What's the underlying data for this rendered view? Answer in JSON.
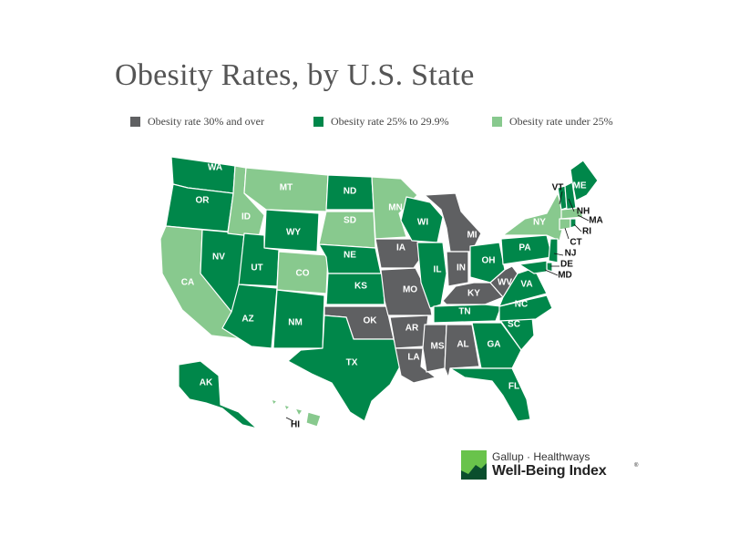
{
  "title": "Obesity Rates, by U.S. State",
  "colors": {
    "high": "#5f6062",
    "mid": "#00874a",
    "low": "#88c98e",
    "label_light": "#ffffff",
    "label_dark": "#111111"
  },
  "legend": [
    {
      "category": "high",
      "label": "Obesity rate 30% and over"
    },
    {
      "category": "mid",
      "label": "Obesity rate 25% to 29.9%"
    },
    {
      "category": "low",
      "label": "Obesity rate under 25%"
    }
  ],
  "states": [
    {
      "abbr": "WA",
      "category": "mid"
    },
    {
      "abbr": "OR",
      "category": "mid"
    },
    {
      "abbr": "CA",
      "category": "low"
    },
    {
      "abbr": "ID",
      "category": "low"
    },
    {
      "abbr": "NV",
      "category": "mid"
    },
    {
      "abbr": "MT",
      "category": "low"
    },
    {
      "abbr": "WY",
      "category": "mid"
    },
    {
      "abbr": "UT",
      "category": "mid"
    },
    {
      "abbr": "CO",
      "category": "low"
    },
    {
      "abbr": "AZ",
      "category": "mid"
    },
    {
      "abbr": "NM",
      "category": "mid"
    },
    {
      "abbr": "ND",
      "category": "mid"
    },
    {
      "abbr": "SD",
      "category": "low"
    },
    {
      "abbr": "NE",
      "category": "mid"
    },
    {
      "abbr": "KS",
      "category": "mid"
    },
    {
      "abbr": "OK",
      "category": "high"
    },
    {
      "abbr": "TX",
      "category": "mid"
    },
    {
      "abbr": "MN",
      "category": "low"
    },
    {
      "abbr": "IA",
      "category": "high"
    },
    {
      "abbr": "MO",
      "category": "high"
    },
    {
      "abbr": "AR",
      "category": "high"
    },
    {
      "abbr": "LA",
      "category": "high"
    },
    {
      "abbr": "WI",
      "category": "mid"
    },
    {
      "abbr": "IL",
      "category": "mid"
    },
    {
      "abbr": "MI",
      "category": "high"
    },
    {
      "abbr": "IN",
      "category": "high"
    },
    {
      "abbr": "OH",
      "category": "mid"
    },
    {
      "abbr": "KY",
      "category": "high"
    },
    {
      "abbr": "WV",
      "category": "high"
    },
    {
      "abbr": "TN",
      "category": "mid"
    },
    {
      "abbr": "MS",
      "category": "high"
    },
    {
      "abbr": "AL",
      "category": "high"
    },
    {
      "abbr": "GA",
      "category": "mid"
    },
    {
      "abbr": "FL",
      "category": "mid"
    },
    {
      "abbr": "SC",
      "category": "mid"
    },
    {
      "abbr": "NC",
      "category": "mid"
    },
    {
      "abbr": "VA",
      "category": "mid"
    },
    {
      "abbr": "PA",
      "category": "mid"
    },
    {
      "abbr": "NY",
      "category": "low"
    },
    {
      "abbr": "VT",
      "category": "mid"
    },
    {
      "abbr": "NH",
      "category": "mid"
    },
    {
      "abbr": "ME",
      "category": "mid"
    },
    {
      "abbr": "MA",
      "category": "low"
    },
    {
      "abbr": "RI",
      "category": "mid"
    },
    {
      "abbr": "CT",
      "category": "low"
    },
    {
      "abbr": "NJ",
      "category": "mid"
    },
    {
      "abbr": "DE",
      "category": "mid"
    },
    {
      "abbr": "MD",
      "category": "mid"
    },
    {
      "abbr": "AK",
      "category": "mid"
    },
    {
      "abbr": "HI",
      "category": "low"
    }
  ],
  "logo": {
    "line1": "Gallup · Healthways",
    "line2": "Well-Being Index",
    "mark": "®"
  }
}
